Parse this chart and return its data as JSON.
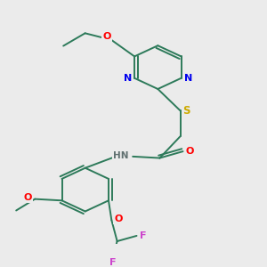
{
  "background_color": "#ebebeb",
  "bond_color": "#2d7a5a",
  "atom_colors": {
    "N": "#0000ee",
    "O": "#ff0000",
    "S": "#ccaa00",
    "F": "#cc44cc",
    "H": "#607070"
  },
  "lw": 1.4,
  "fontsize": 7.5,
  "xlim": [
    0,
    10
  ],
  "ylim": [
    0,
    10
  ]
}
